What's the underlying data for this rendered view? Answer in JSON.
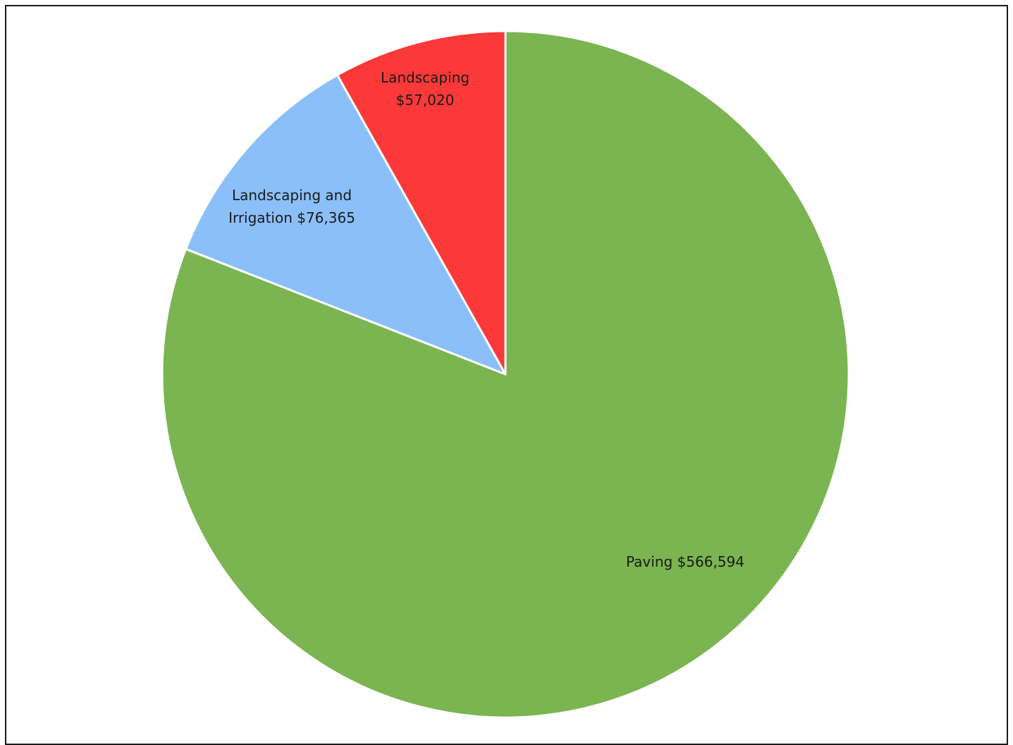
{
  "chart_data": {
    "type": "pie",
    "start_angle_deg": 0,
    "direction": "clockwise",
    "slices": [
      {
        "label": "Paving",
        "value": 566594,
        "display_lines": [
          "Paving $566,594"
        ],
        "color": "#7ab551"
      },
      {
        "label": "Landscaping and Irrigation",
        "value": 76365,
        "display_lines": [
          "Landscaping and",
          "Irrigation $76,365"
        ],
        "color": "#8bbff9"
      },
      {
        "label": "Landscaping",
        "value": 57020,
        "display_lines": [
          "Landscaping",
          "$57,020"
        ],
        "color": "#fc3939"
      }
    ],
    "slice_border_color": "#ffffff",
    "legend": "none"
  }
}
